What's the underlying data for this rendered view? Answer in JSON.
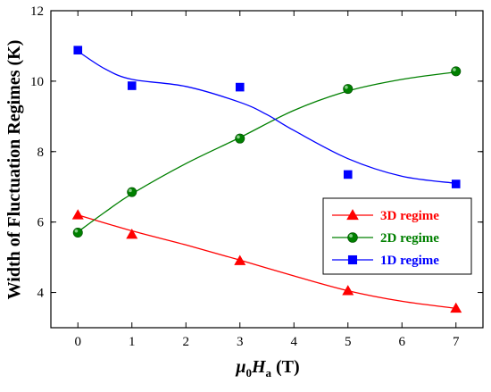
{
  "chart_data": {
    "type": "line",
    "xlabel": {
      "main": "μ",
      "sub0": "0",
      "main2": "H",
      "sub1": "a",
      "unit": " (T)"
    },
    "ylabel": "Width of Fluctuation Regimes (K)",
    "xlim": [
      -0.5,
      7.5
    ],
    "ylim": [
      3,
      12
    ],
    "xticks": [
      0,
      1,
      2,
      3,
      4,
      5,
      6,
      7
    ],
    "yticks": [
      4,
      6,
      8,
      10,
      12
    ],
    "legend_position": "right-middle",
    "series": [
      {
        "name": "3D regime",
        "color": "#ff0000",
        "marker": "triangle",
        "x": [
          0,
          1,
          3,
          5,
          7
        ],
        "y": [
          6.2,
          5.65,
          4.9,
          4.05,
          3.55
        ],
        "fit": [
          [
            0,
            6.2
          ],
          [
            1,
            5.75
          ],
          [
            2,
            5.35
          ],
          [
            3,
            4.92
          ],
          [
            4,
            4.47
          ],
          [
            5,
            4.05
          ],
          [
            6,
            3.75
          ],
          [
            7,
            3.55
          ]
        ]
      },
      {
        "name": "2D regime",
        "color": "#008000",
        "marker": "sphere",
        "x": [
          0,
          1,
          3,
          5,
          7
        ],
        "y": [
          5.7,
          6.85,
          8.37,
          9.78,
          10.28
        ],
        "fit": [
          [
            0,
            5.72
          ],
          [
            0.5,
            6.28
          ],
          [
            1,
            6.8
          ],
          [
            2,
            7.66
          ],
          [
            3,
            8.4
          ],
          [
            4,
            9.17
          ],
          [
            5,
            9.72
          ],
          [
            6,
            10.05
          ],
          [
            7,
            10.26
          ]
        ]
      },
      {
        "name": "1D regime",
        "color": "#0000ff",
        "marker": "square",
        "x": [
          0,
          1,
          3,
          5,
          7
        ],
        "y": [
          10.88,
          9.87,
          9.83,
          7.35,
          7.08
        ],
        "fit": [
          [
            0,
            10.85
          ],
          [
            0.5,
            10.35
          ],
          [
            1,
            10.05
          ],
          [
            2,
            9.85
          ],
          [
            3,
            9.4
          ],
          [
            3.5,
            9.05
          ],
          [
            4,
            8.6
          ],
          [
            5,
            7.8
          ],
          [
            6,
            7.3
          ],
          [
            7,
            7.1
          ]
        ]
      }
    ]
  }
}
